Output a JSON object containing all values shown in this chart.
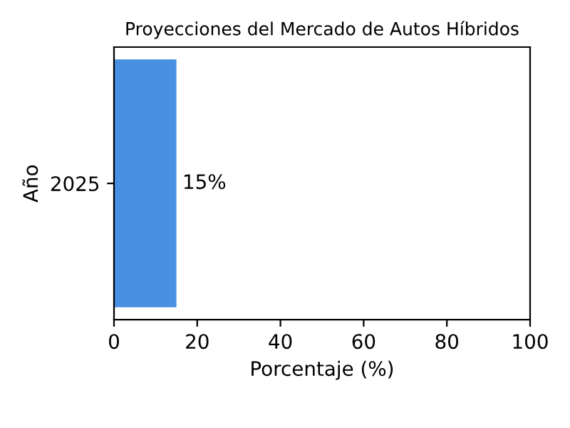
{
  "chart_data": {
    "type": "bar",
    "orientation": "horizontal",
    "title": "Proyecciones del Mercado de Autos Híbridos",
    "xlabel": "Porcentaje (%)",
    "ylabel": "Año",
    "categories": [
      "2025"
    ],
    "values": [
      15
    ],
    "value_labels": [
      "15%"
    ],
    "color": "#4a90e2",
    "xlim": [
      0,
      100
    ],
    "xticks": [
      0,
      20,
      40,
      60,
      80,
      100
    ],
    "grid": false
  }
}
